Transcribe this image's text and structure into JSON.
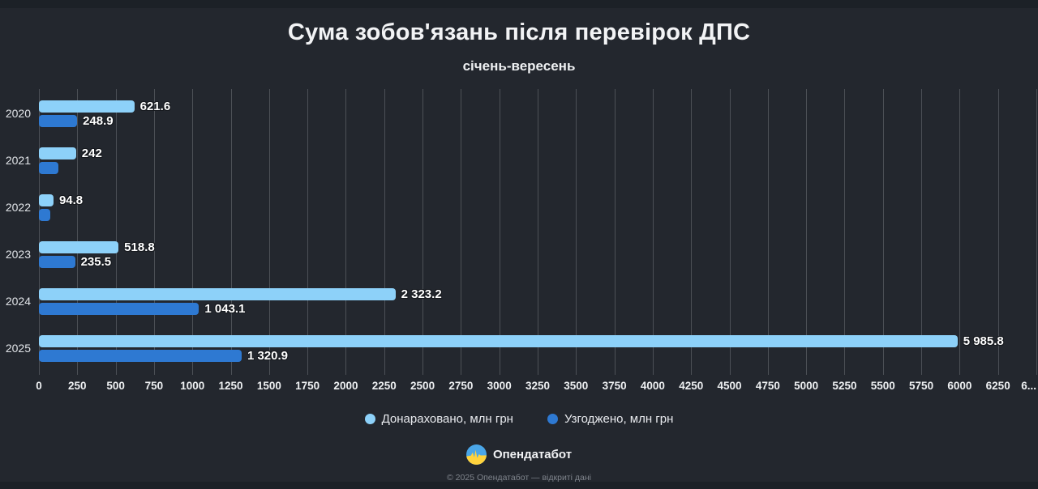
{
  "page": {
    "background": "#23272e",
    "strip_color": "#1c2127",
    "grid_color": "#4c5056"
  },
  "header": {
    "title": "Сума зобов'язань після перевірок ДПС",
    "subtitle": "січень-вересень"
  },
  "chart_data": {
    "type": "bar",
    "orientation": "horizontal",
    "title": "Сума зобов'язань після перевірок ДПС",
    "subtitle": "січень-вересень",
    "categories": [
      "2020",
      "2021",
      "2022",
      "2023",
      "2024",
      "2025"
    ],
    "series": [
      {
        "name": "Донараховано, млн грн",
        "color": "#8dd1f9",
        "values": [
          621.6,
          242,
          94.8,
          518.8,
          2323.2,
          5985.8
        ],
        "labels": [
          "621.6",
          "242",
          "94.8",
          "518.8",
          "2 323.2",
          "5 985.8"
        ]
      },
      {
        "name": "Узгоджено, млн грн",
        "color": "#2e79d2",
        "values": [
          248.9,
          125,
          72,
          235.5,
          1043.1,
          1320.9
        ],
        "labels": [
          "248.9",
          "",
          "",
          "235.5",
          "1 043.1",
          "1 320.9"
        ]
      }
    ],
    "x_ticks": [
      "0",
      "250",
      "500",
      "750",
      "1000",
      "1250",
      "1500",
      "1750",
      "2000",
      "2250",
      "2500",
      "2750",
      "3000",
      "3250",
      "3500",
      "3750",
      "4000",
      "4250",
      "4500",
      "4750",
      "5000",
      "5250",
      "5500",
      "5750",
      "6000",
      "6250",
      "6..."
    ],
    "x_max": 6500,
    "xlabel": "",
    "ylabel": "",
    "grid": true,
    "legend_position": "bottom"
  },
  "branding": {
    "logo_text": "Опендатабот",
    "logo_blue": "#4aa6e8",
    "logo_yellow": "#ffd33d"
  },
  "footer": {
    "copyright": "© 2025 Опендатабот — відкриті дані"
  }
}
